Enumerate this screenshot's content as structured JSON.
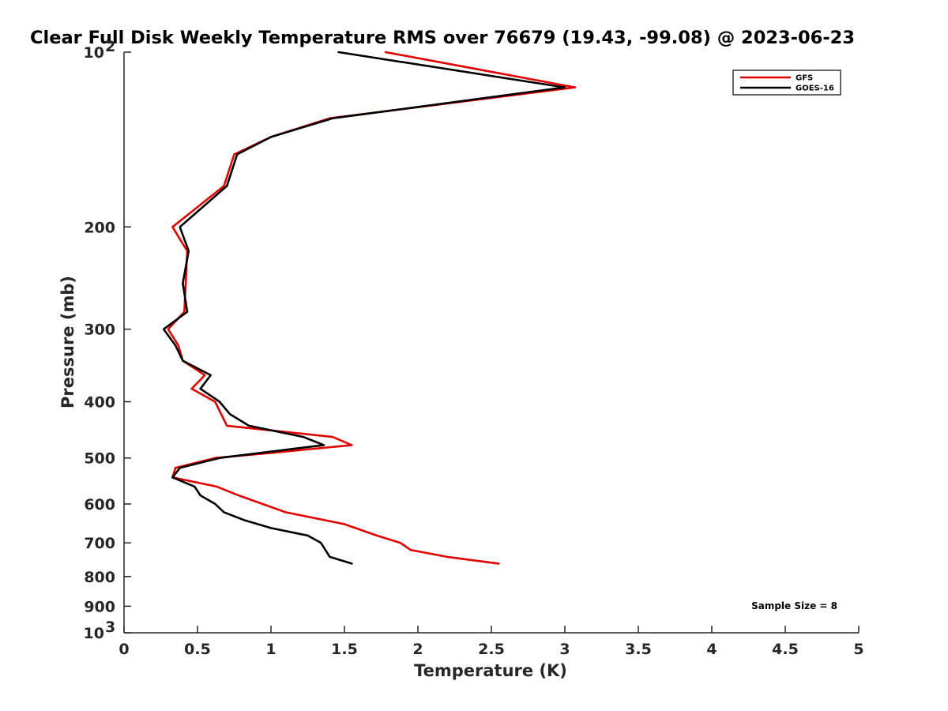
{
  "chart_data": {
    "type": "line",
    "title": "Clear Full Disk Weekly Temperature RMS over 76679 (19.43, -99.08) @ 2023-06-23",
    "xlabel": "Temperature (K)",
    "ylabel": "Pressure (mb)",
    "xlim": [
      0,
      5
    ],
    "ylim": [
      100,
      1000
    ],
    "yscale": "log",
    "y_reversed": true,
    "x_ticks": [
      "0",
      "0.5",
      "1",
      "1.5",
      "2",
      "2.5",
      "3",
      "3.5",
      "4",
      "4.5",
      "5"
    ],
    "y_ticks": [
      {
        "value": 100,
        "label": "10",
        "sup": "2"
      },
      {
        "value": 200,
        "label": "200"
      },
      {
        "value": 300,
        "label": "300"
      },
      {
        "value": 400,
        "label": "400"
      },
      {
        "value": 500,
        "label": "500"
      },
      {
        "value": 600,
        "label": "600"
      },
      {
        "value": 700,
        "label": "700"
      },
      {
        "value": 800,
        "label": "800"
      },
      {
        "value": 900,
        "label": "900"
      },
      {
        "value": 1000,
        "label": "10",
        "sup": "3"
      }
    ],
    "grid": false,
    "legend_position": "top-right",
    "annotation": "Sample Size = 8",
    "series": [
      {
        "name": "GFS",
        "color": "#e00000",
        "points": [
          {
            "x": 1.78,
            "y": 100
          },
          {
            "x": 3.07,
            "y": 115
          },
          {
            "x": 1.4,
            "y": 130
          },
          {
            "x": 1.0,
            "y": 140
          },
          {
            "x": 0.75,
            "y": 150
          },
          {
            "x": 0.68,
            "y": 170
          },
          {
            "x": 0.33,
            "y": 200
          },
          {
            "x": 0.43,
            "y": 220
          },
          {
            "x": 0.42,
            "y": 250
          },
          {
            "x": 0.41,
            "y": 280
          },
          {
            "x": 0.3,
            "y": 300
          },
          {
            "x": 0.37,
            "y": 320
          },
          {
            "x": 0.4,
            "y": 340
          },
          {
            "x": 0.55,
            "y": 360
          },
          {
            "x": 0.46,
            "y": 380
          },
          {
            "x": 0.62,
            "y": 400
          },
          {
            "x": 0.7,
            "y": 440
          },
          {
            "x": 1.42,
            "y": 460
          },
          {
            "x": 1.55,
            "y": 475
          },
          {
            "x": 1.0,
            "y": 490
          },
          {
            "x": 0.62,
            "y": 500
          },
          {
            "x": 0.35,
            "y": 520
          },
          {
            "x": 0.33,
            "y": 540
          },
          {
            "x": 0.63,
            "y": 560
          },
          {
            "x": 0.78,
            "y": 580
          },
          {
            "x": 1.1,
            "y": 620
          },
          {
            "x": 1.5,
            "y": 650
          },
          {
            "x": 1.72,
            "y": 680
          },
          {
            "x": 1.88,
            "y": 700
          },
          {
            "x": 1.95,
            "y": 720
          },
          {
            "x": 2.2,
            "y": 740
          },
          {
            "x": 2.55,
            "y": 760
          }
        ]
      },
      {
        "name": "GOES-16",
        "color": "#000000",
        "points": [
          {
            "x": 1.46,
            "y": 100
          },
          {
            "x": 3.0,
            "y": 115
          },
          {
            "x": 1.42,
            "y": 130
          },
          {
            "x": 1.0,
            "y": 140
          },
          {
            "x": 0.77,
            "y": 150
          },
          {
            "x": 0.7,
            "y": 170
          },
          {
            "x": 0.38,
            "y": 200
          },
          {
            "x": 0.44,
            "y": 220
          },
          {
            "x": 0.4,
            "y": 250
          },
          {
            "x": 0.43,
            "y": 280
          },
          {
            "x": 0.27,
            "y": 300
          },
          {
            "x": 0.35,
            "y": 320
          },
          {
            "x": 0.4,
            "y": 340
          },
          {
            "x": 0.59,
            "y": 360
          },
          {
            "x": 0.52,
            "y": 380
          },
          {
            "x": 0.65,
            "y": 400
          },
          {
            "x": 0.72,
            "y": 420
          },
          {
            "x": 0.85,
            "y": 440
          },
          {
            "x": 1.22,
            "y": 460
          },
          {
            "x": 1.36,
            "y": 475
          },
          {
            "x": 0.65,
            "y": 500
          },
          {
            "x": 0.38,
            "y": 520
          },
          {
            "x": 0.33,
            "y": 540
          },
          {
            "x": 0.48,
            "y": 560
          },
          {
            "x": 0.52,
            "y": 580
          },
          {
            "x": 0.62,
            "y": 600
          },
          {
            "x": 0.68,
            "y": 620
          },
          {
            "x": 0.82,
            "y": 640
          },
          {
            "x": 1.0,
            "y": 660
          },
          {
            "x": 1.25,
            "y": 680
          },
          {
            "x": 1.34,
            "y": 700
          },
          {
            "x": 1.4,
            "y": 740
          },
          {
            "x": 1.55,
            "y": 760
          }
        ]
      }
    ]
  }
}
